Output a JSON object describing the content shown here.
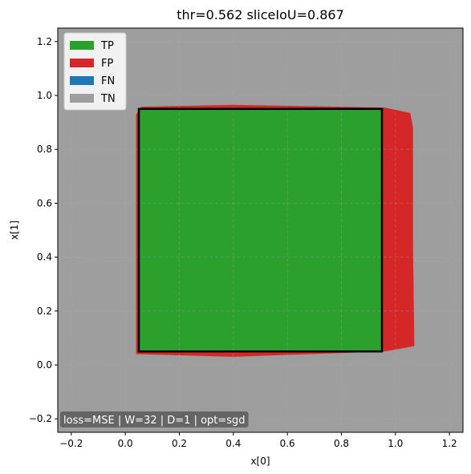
{
  "chart_data": {
    "type": "heatmap",
    "title": "thr=0.562  sliceIoU=0.867",
    "xlabel": "x[0]",
    "ylabel": "x[1]",
    "xlim": [
      -0.25,
      1.25
    ],
    "ylim": [
      -0.25,
      1.25
    ],
    "xticks": [
      -0.2,
      0.0,
      0.2,
      0.4,
      0.6,
      0.8,
      1.0,
      1.2
    ],
    "yticks": [
      -0.2,
      0.0,
      0.2,
      0.4,
      0.6,
      0.8,
      1.0,
      1.2
    ],
    "xtick_labels": [
      "−0.2",
      "0.0",
      "0.2",
      "0.4",
      "0.6",
      "0.8",
      "1.0",
      "1.2"
    ],
    "ytick_labels": [
      "−0.2",
      "0.0",
      "0.2",
      "0.4",
      "0.6",
      "0.8",
      "1.0",
      "1.2"
    ],
    "grid": true,
    "legend_position": "top-left",
    "legend": [
      {
        "label": "TP",
        "color": "#2ca02c"
      },
      {
        "label": "FP",
        "color": "#d62728"
      },
      {
        "label": "FN",
        "color": "#1f77b4"
      },
      {
        "label": "TN",
        "color": "#9e9e9e"
      }
    ],
    "background_class": "TN",
    "predicted_region": {
      "class": "FP",
      "color": "#d62728",
      "polygon": [
        [
          0.04,
          0.04
        ],
        [
          0.4,
          0.03
        ],
        [
          0.96,
          0.05
        ],
        [
          1.07,
          0.07
        ],
        [
          1.065,
          0.45
        ],
        [
          1.065,
          0.88
        ],
        [
          1.055,
          0.935
        ],
        [
          0.96,
          0.955
        ],
        [
          0.4,
          0.965
        ],
        [
          0.06,
          0.958
        ],
        [
          0.04,
          0.93
        ]
      ]
    },
    "true_region": {
      "class": "TP",
      "color": "#2ca02c",
      "x_range": [
        0.05,
        0.95
      ],
      "y_range": [
        0.05,
        0.95
      ],
      "outline_color": "#000000"
    },
    "annotation": "loss=MSE | W=32 | D=1 | opt=sgd"
  }
}
